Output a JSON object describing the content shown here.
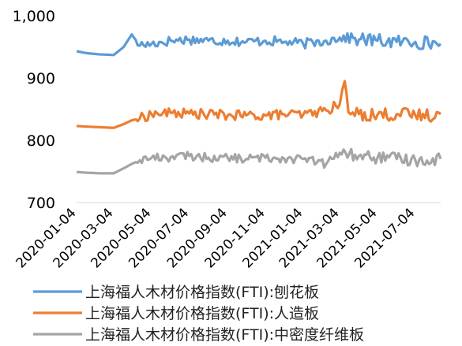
{
  "chart_data": {
    "type": "line",
    "title": "",
    "xlabel": "",
    "ylabel": "",
    "ylim": [
      700,
      1000
    ],
    "yticks": [
      700,
      800,
      900,
      1000
    ],
    "ytick_labels": [
      "700",
      "800",
      "900",
      "1,000"
    ],
    "grid": false,
    "legend_position": "bottom",
    "x_range": [
      "2020-01-04",
      "2021-08-14"
    ],
    "x_tick_labels": [
      "2020-01-04",
      "2020-03-04",
      "2020-05-04",
      "2020-07-04",
      "2020-09-04",
      "2020-11-04",
      "2021-01-04",
      "2021-03-04",
      "2021-05-04",
      "2021-07-04"
    ],
    "series": [
      {
        "name": "上海福人木材价格指数(FTI):刨花板",
        "color": "#5b9bd5",
        "points": [
          [
            "2020-01-04",
            943
          ],
          [
            "2020-01-20",
            940
          ],
          [
            "2020-02-10",
            938
          ],
          [
            "2020-03-04",
            937
          ],
          [
            "2020-03-20",
            950
          ],
          [
            "2020-04-02",
            970
          ],
          [
            "2020-04-15",
            952
          ],
          [
            "2020-05-04",
            955
          ],
          [
            "2020-06-04",
            960
          ],
          [
            "2020-07-04",
            962
          ],
          [
            "2020-08-04",
            960
          ],
          [
            "2020-09-04",
            960
          ],
          [
            "2020-10-04",
            958
          ],
          [
            "2020-11-04",
            960
          ],
          [
            "2020-12-04",
            958
          ],
          [
            "2021-01-04",
            955
          ],
          [
            "2021-02-10",
            960
          ],
          [
            "2021-03-04",
            965
          ],
          [
            "2021-04-04",
            962
          ],
          [
            "2021-05-04",
            960
          ],
          [
            "2021-06-04",
            958
          ],
          [
            "2021-07-04",
            958
          ],
          [
            "2021-08-14",
            955
          ]
        ]
      },
      {
        "name": "上海福人木材价格指数(FTI):人造板",
        "color": "#ed7d31",
        "points": [
          [
            "2020-01-04",
            823
          ],
          [
            "2020-01-20",
            822
          ],
          [
            "2020-02-10",
            821
          ],
          [
            "2020-03-04",
            820
          ],
          [
            "2020-03-20",
            826
          ],
          [
            "2020-04-02",
            832
          ],
          [
            "2020-04-15",
            835
          ],
          [
            "2020-05-04",
            842
          ],
          [
            "2020-06-04",
            844
          ],
          [
            "2020-07-04",
            843
          ],
          [
            "2020-08-04",
            842
          ],
          [
            "2020-09-04",
            840
          ],
          [
            "2020-10-04",
            840
          ],
          [
            "2020-11-04",
            840
          ],
          [
            "2020-12-04",
            842
          ],
          [
            "2021-01-04",
            841
          ],
          [
            "2021-02-10",
            848
          ],
          [
            "2021-03-04",
            858
          ],
          [
            "2021-03-12",
            895
          ],
          [
            "2021-03-18",
            845
          ],
          [
            "2021-04-04",
            842
          ],
          [
            "2021-05-04",
            841
          ],
          [
            "2021-06-04",
            842
          ],
          [
            "2021-07-04",
            840
          ],
          [
            "2021-08-14",
            842
          ]
        ]
      },
      {
        "name": "上海福人木材价格指数(FTI):中密度纤维板",
        "color": "#a5a5a5",
        "points": [
          [
            "2020-01-04",
            749
          ],
          [
            "2020-01-20",
            748
          ],
          [
            "2020-02-10",
            747
          ],
          [
            "2020-03-04",
            747
          ],
          [
            "2020-03-20",
            755
          ],
          [
            "2020-04-02",
            762
          ],
          [
            "2020-04-15",
            768
          ],
          [
            "2020-05-04",
            772
          ],
          [
            "2020-06-04",
            773
          ],
          [
            "2020-07-04",
            775
          ],
          [
            "2020-08-04",
            772
          ],
          [
            "2020-09-04",
            772
          ],
          [
            "2020-10-04",
            770
          ],
          [
            "2020-11-04",
            772
          ],
          [
            "2020-12-04",
            771
          ],
          [
            "2021-01-04",
            770
          ],
          [
            "2021-02-10",
            762
          ],
          [
            "2021-03-04",
            780
          ],
          [
            "2021-04-04",
            775
          ],
          [
            "2021-05-04",
            772
          ],
          [
            "2021-06-04",
            770
          ],
          [
            "2021-07-04",
            768
          ],
          [
            "2021-08-14",
            770
          ]
        ]
      }
    ]
  }
}
